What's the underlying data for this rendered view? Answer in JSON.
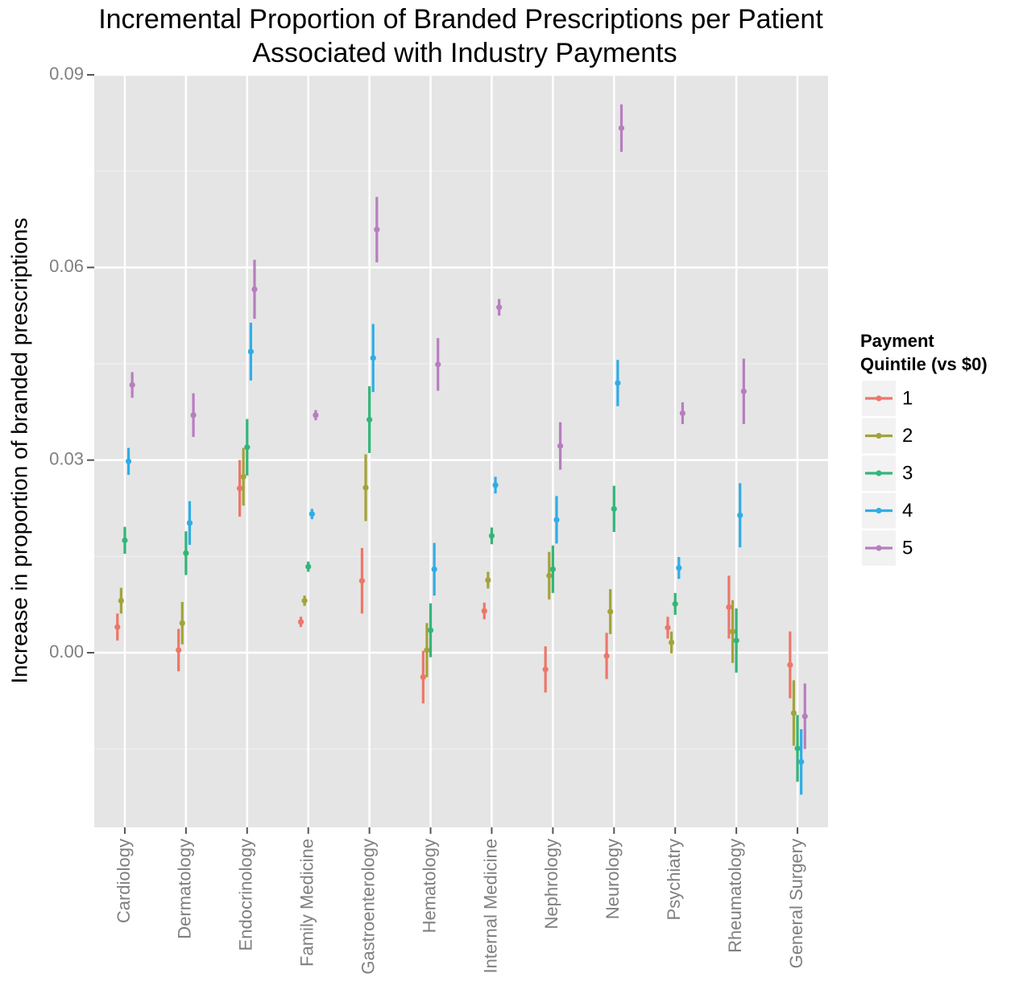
{
  "chart_data": {
    "type": "pointrange",
    "title": [
      "Incremental Proportion of Branded Prescriptions per Patient",
      "Associated with Industry Payments"
    ],
    "y_label": "Increase in proportion of branded prescriptions",
    "legend_title": [
      "Payment",
      "Quintile (vs $0)"
    ],
    "categories": [
      "Cardiology",
      "Dermatology",
      "Endocrinology",
      "Family Medicine",
      "Gastroenterology",
      "Hematology",
      "Internal Medicine",
      "Nephrology",
      "Neurology",
      "Psychiatry",
      "Rheumatology",
      "General Surgery"
    ],
    "ylim": [
      -0.0272,
      0.09
    ],
    "yticks": [
      {
        "value": 0,
        "label": "0.00"
      },
      {
        "value": 0.03,
        "label": "0.03"
      },
      {
        "value": 0.06,
        "label": "0.06"
      },
      {
        "value": 0.09,
        "label": "0.09"
      }
    ],
    "grid": true,
    "legend": "right",
    "series": [
      {
        "name": "1",
        "color": "#ec7769",
        "values": [
          0.004,
          0.0004,
          0.0256,
          0.0048,
          0.0112,
          -0.0038,
          0.0065,
          -0.0026,
          -0.0005,
          0.0039,
          0.0071,
          -0.0019
        ],
        "errors": [
          0.0021,
          0.0033,
          0.0044,
          0.0008,
          0.0051,
          0.0041,
          0.0013,
          0.0036,
          0.0036,
          0.0017,
          0.0049,
          0.0052
        ]
      },
      {
        "name": "2",
        "color": "#a3a33a",
        "values": [
          0.0081,
          0.0046,
          0.0274,
          0.0081,
          0.0257,
          0.0004,
          0.0113,
          0.012,
          0.0064,
          0.0016,
          0.0033,
          -0.0094
        ],
        "errors": [
          0.002,
          0.0033,
          0.0045,
          0.0008,
          0.0052,
          0.0042,
          0.0013,
          0.0037,
          0.0035,
          0.0017,
          0.0049,
          0.0051
        ]
      },
      {
        "name": "3",
        "color": "#32b67a",
        "values": [
          0.0175,
          0.0155,
          0.032,
          0.0134,
          0.0363,
          0.0035,
          0.0182,
          0.013,
          0.0224,
          0.0076,
          0.0019,
          -0.0149
        ],
        "errors": [
          0.0021,
          0.0034,
          0.0044,
          0.0008,
          0.0052,
          0.0042,
          0.0013,
          0.0037,
          0.0036,
          0.0017,
          0.005,
          0.0052
        ]
      },
      {
        "name": "4",
        "color": "#2fade6",
        "values": [
          0.0298,
          0.0202,
          0.0469,
          0.0216,
          0.0459,
          0.013,
          0.0261,
          0.0207,
          0.042,
          0.0132,
          0.0214,
          -0.017
        ],
        "errors": [
          0.0021,
          0.0034,
          0.0045,
          0.0008,
          0.0053,
          0.0041,
          0.0013,
          0.0037,
          0.0036,
          0.0017,
          0.005,
          0.0051
        ]
      },
      {
        "name": "5",
        "color": "#b87dc0",
        "values": [
          0.0417,
          0.037,
          0.0566,
          0.037,
          0.0659,
          0.0449,
          0.0538,
          0.0322,
          0.0817,
          0.0373,
          0.0407,
          -0.0099
        ],
        "errors": [
          0.002,
          0.0034,
          0.0046,
          0.0008,
          0.0051,
          0.0041,
          0.0013,
          0.0037,
          0.0037,
          0.0017,
          0.0051,
          0.0051
        ]
      }
    ]
  }
}
